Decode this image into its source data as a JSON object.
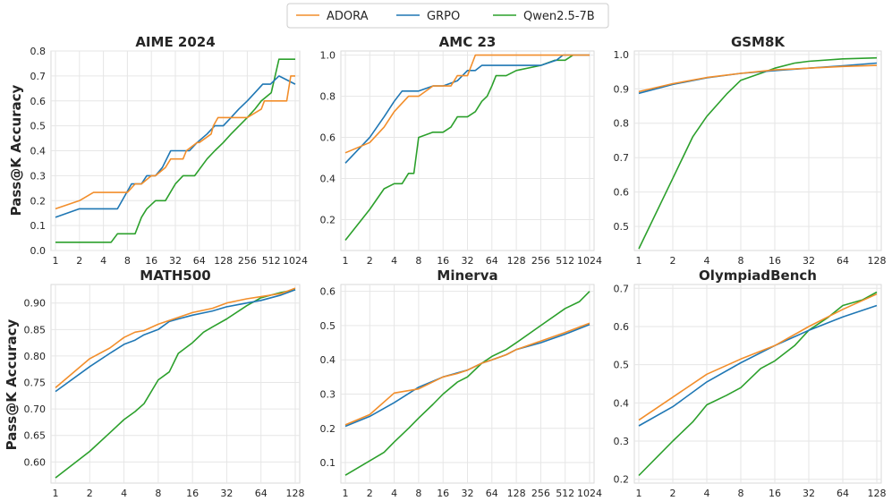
{
  "legend": {
    "entries": [
      {
        "name": "ADORA",
        "color": "#f28e2b"
      },
      {
        "name": "GRPO",
        "color": "#1f77b4"
      },
      {
        "name": "Qwen2.5-7B",
        "color": "#2ca02c"
      }
    ]
  },
  "ylabel": "Pass@K Accuracy",
  "chart_data": [
    {
      "type": "line",
      "title": "AIME 2024",
      "xscale": "log2",
      "xlim": [
        1,
        1024
      ],
      "ylim": [
        0,
        0.8
      ],
      "xticks": [
        1,
        2,
        4,
        8,
        16,
        32,
        64,
        128,
        256,
        512,
        1024
      ],
      "xtick_labels": [
        "1",
        "2",
        "4",
        "8",
        "16",
        "32",
        "64",
        "128",
        "256",
        "512",
        "1024"
      ],
      "yticks": [
        0.0,
        0.1,
        0.2,
        0.3,
        0.4,
        0.5,
        0.6,
        0.7,
        0.8
      ],
      "ytick_labels": [
        "0.0",
        "0.1",
        "0.2",
        "0.3",
        "0.4",
        "0.5",
        "0.6",
        "0.7",
        "0.8"
      ],
      "series": [
        {
          "name": "ADORA",
          "x": [
            1,
            2,
            3,
            8,
            10,
            12,
            16,
            18,
            24,
            28,
            40,
            44,
            60,
            64,
            90,
            96,
            110,
            128,
            160,
            256,
            384,
            420,
            540,
            800,
            900,
            1024
          ],
          "y": [
            0.167,
            0.2,
            0.233,
            0.233,
            0.267,
            0.267,
            0.3,
            0.3,
            0.333,
            0.367,
            0.367,
            0.4,
            0.433,
            0.433,
            0.467,
            0.5,
            0.533,
            0.533,
            0.533,
            0.533,
            0.567,
            0.6,
            0.6,
            0.6,
            0.7,
            0.7
          ]
        },
        {
          "name": "GRPO",
          "x": [
            1,
            2,
            6,
            9,
            12,
            14,
            18,
            22,
            28,
            34,
            48,
            60,
            80,
            100,
            128,
            160,
            200,
            256,
            320,
            400,
            500,
            640,
            1024
          ],
          "y": [
            0.133,
            0.167,
            0.167,
            0.267,
            0.267,
            0.3,
            0.3,
            0.333,
            0.4,
            0.4,
            0.4,
            0.433,
            0.467,
            0.5,
            0.5,
            0.533,
            0.567,
            0.6,
            0.633,
            0.667,
            0.667,
            0.7,
            0.667
          ]
        },
        {
          "name": "Qwen2.5-7B",
          "x": [
            1,
            5,
            6,
            10,
            12,
            14,
            18,
            24,
            32,
            40,
            56,
            80,
            100,
            128,
            160,
            256,
            320,
            384,
            512,
            640,
            1024
          ],
          "y": [
            0.033,
            0.033,
            0.067,
            0.067,
            0.133,
            0.167,
            0.2,
            0.2,
            0.267,
            0.3,
            0.3,
            0.367,
            0.4,
            0.433,
            0.467,
            0.533,
            0.567,
            0.6,
            0.633,
            0.767,
            0.767
          ]
        }
      ]
    },
    {
      "type": "line",
      "title": "AMC 23",
      "xscale": "log2",
      "xlim": [
        1,
        1024
      ],
      "ylim": [
        0.05,
        1.02
      ],
      "xticks": [
        1,
        2,
        4,
        8,
        16,
        32,
        64,
        128,
        256,
        512,
        1024
      ],
      "xtick_labels": [
        "1",
        "2",
        "4",
        "8",
        "16",
        "32",
        "64",
        "128",
        "256",
        "512",
        "1024"
      ],
      "yticks": [
        0.2,
        0.4,
        0.6,
        0.8,
        1.0
      ],
      "ytick_labels": [
        "0.2",
        "0.4",
        "0.6",
        "0.8",
        "1.0"
      ],
      "series": [
        {
          "name": "ADORA",
          "x": [
            1,
            2,
            3,
            4,
            6,
            8,
            12,
            16,
            20,
            24,
            32,
            40,
            64,
            128,
            256,
            512,
            1024
          ],
          "y": [
            0.525,
            0.575,
            0.65,
            0.725,
            0.8,
            0.8,
            0.85,
            0.85,
            0.85,
            0.9,
            0.9,
            1.0,
            1.0,
            1.0,
            1.0,
            1.0,
            1.0
          ]
        },
        {
          "name": "GRPO",
          "x": [
            1,
            2,
            3,
            4,
            5,
            8,
            12,
            16,
            24,
            32,
            40,
            48,
            64,
            128,
            256,
            400,
            480,
            1024
          ],
          "y": [
            0.475,
            0.6,
            0.7,
            0.775,
            0.825,
            0.825,
            0.85,
            0.85,
            0.875,
            0.925,
            0.925,
            0.95,
            0.95,
            0.95,
            0.95,
            0.975,
            1.0,
            1.0
          ]
        },
        {
          "name": "Qwen2.5-7B",
          "x": [
            1,
            2,
            3,
            4,
            5,
            6,
            7,
            8,
            12,
            16,
            20,
            24,
            32,
            40,
            48,
            56,
            64,
            72,
            96,
            128,
            256,
            384,
            512,
            640
          ],
          "y": [
            0.1,
            0.25,
            0.35,
            0.375,
            0.375,
            0.425,
            0.425,
            0.6,
            0.625,
            0.625,
            0.65,
            0.7,
            0.7,
            0.725,
            0.775,
            0.8,
            0.85,
            0.9,
            0.9,
            0.925,
            0.95,
            0.975,
            0.975,
            1.0
          ]
        }
      ]
    },
    {
      "type": "line",
      "title": "GSM8K",
      "xscale": "log2",
      "xlim": [
        1,
        128
      ],
      "ylim": [
        0.43,
        1.01
      ],
      "xticks": [
        1,
        2,
        4,
        8,
        16,
        32,
        64,
        128
      ],
      "xtick_labels": [
        "1",
        "2",
        "4",
        "8",
        "16",
        "32",
        "64",
        "128"
      ],
      "yticks": [
        0.5,
        0.6,
        0.7,
        0.8,
        0.9,
        1.0
      ],
      "ytick_labels": [
        "0.5",
        "0.6",
        "0.7",
        "0.8",
        "0.9",
        "1.0"
      ],
      "series": [
        {
          "name": "ADORA",
          "x": [
            1,
            2,
            4,
            8,
            16,
            32,
            64,
            128
          ],
          "y": [
            0.892,
            0.915,
            0.933,
            0.945,
            0.955,
            0.96,
            0.965,
            0.968
          ]
        },
        {
          "name": "GRPO",
          "x": [
            1,
            2,
            4,
            8,
            16,
            32,
            64,
            128
          ],
          "y": [
            0.887,
            0.913,
            0.932,
            0.945,
            0.953,
            0.96,
            0.967,
            0.975
          ]
        },
        {
          "name": "Qwen2.5-7B",
          "x": [
            1,
            2,
            3,
            4,
            6,
            8,
            12,
            16,
            24,
            32,
            64,
            128
          ],
          "y": [
            0.435,
            0.64,
            0.76,
            0.82,
            0.885,
            0.925,
            0.945,
            0.96,
            0.975,
            0.98,
            0.987,
            0.99
          ]
        }
      ]
    },
    {
      "type": "line",
      "title": "MATH500",
      "xscale": "log2",
      "xlim": [
        1,
        128
      ],
      "ylim": [
        0.56,
        0.935
      ],
      "xticks": [
        1,
        2,
        4,
        8,
        16,
        32,
        64,
        128
      ],
      "xtick_labels": [
        "1",
        "2",
        "4",
        "8",
        "16",
        "32",
        "64",
        "128"
      ],
      "yticks": [
        0.6,
        0.65,
        0.7,
        0.75,
        0.8,
        0.85,
        0.9
      ],
      "ytick_labels": [
        "0.60",
        "0.65",
        "0.70",
        "0.75",
        "0.80",
        "0.85",
        "0.90"
      ],
      "series": [
        {
          "name": "ADORA",
          "x": [
            1,
            2,
            3,
            4,
            5,
            6,
            8,
            12,
            16,
            24,
            32,
            48,
            64,
            96,
            128
          ],
          "y": [
            0.74,
            0.795,
            0.815,
            0.835,
            0.845,
            0.848,
            0.86,
            0.873,
            0.882,
            0.89,
            0.9,
            0.908,
            0.912,
            0.918,
            0.928
          ]
        },
        {
          "name": "GRPO",
          "x": [
            1,
            2,
            3,
            4,
            5,
            6,
            8,
            10,
            12,
            16,
            24,
            32,
            48,
            64,
            96,
            128
          ],
          "y": [
            0.733,
            0.78,
            0.805,
            0.822,
            0.83,
            0.84,
            0.85,
            0.865,
            0.87,
            0.877,
            0.885,
            0.893,
            0.9,
            0.905,
            0.915,
            0.925
          ]
        },
        {
          "name": "Qwen2.5-7B",
          "x": [
            1,
            2,
            3,
            4,
            5,
            6,
            8,
            10,
            12,
            16,
            20,
            24,
            32,
            48,
            64,
            96,
            128
          ],
          "y": [
            0.57,
            0.62,
            0.655,
            0.68,
            0.695,
            0.71,
            0.755,
            0.77,
            0.805,
            0.825,
            0.845,
            0.855,
            0.87,
            0.895,
            0.91,
            0.92,
            0.925
          ]
        }
      ]
    },
    {
      "type": "line",
      "title": "Minerva",
      "xscale": "log2",
      "xlim": [
        1,
        1024
      ],
      "ylim": [
        0.04,
        0.62
      ],
      "xticks": [
        1,
        2,
        4,
        8,
        16,
        32,
        64,
        128,
        256,
        512,
        1024
      ],
      "xtick_labels": [
        "1",
        "2",
        "4",
        "8",
        "16",
        "32",
        "64",
        "128",
        "256",
        "512",
        "1024"
      ],
      "yticks": [
        0.1,
        0.2,
        0.3,
        0.4,
        0.5,
        0.6
      ],
      "ytick_labels": [
        "0.1",
        "0.2",
        "0.3",
        "0.4",
        "0.5",
        "0.6"
      ],
      "series": [
        {
          "name": "ADORA",
          "x": [
            1,
            2,
            4,
            8,
            16,
            24,
            32,
            48,
            64,
            96,
            128,
            256,
            512,
            1024
          ],
          "y": [
            0.21,
            0.24,
            0.303,
            0.315,
            0.35,
            0.36,
            0.37,
            0.39,
            0.4,
            0.415,
            0.43,
            0.455,
            0.48,
            0.507
          ]
        },
        {
          "name": "GRPO",
          "x": [
            1,
            2,
            4,
            8,
            16,
            32,
            48,
            64,
            96,
            128,
            256,
            512,
            1024
          ],
          "y": [
            0.206,
            0.235,
            0.275,
            0.32,
            0.35,
            0.37,
            0.39,
            0.4,
            0.415,
            0.43,
            0.45,
            0.475,
            0.503
          ]
        },
        {
          "name": "Qwen2.5-7B",
          "x": [
            1,
            2,
            3,
            4,
            6,
            8,
            12,
            16,
            24,
            32,
            48,
            64,
            96,
            128,
            256,
            512,
            768,
            1024
          ],
          "y": [
            0.063,
            0.105,
            0.13,
            0.16,
            0.2,
            0.23,
            0.27,
            0.3,
            0.335,
            0.35,
            0.39,
            0.41,
            0.43,
            0.45,
            0.5,
            0.55,
            0.57,
            0.6
          ]
        }
      ]
    },
    {
      "type": "line",
      "title": "OlympiadBench",
      "xscale": "log2",
      "xlim": [
        1,
        128
      ],
      "ylim": [
        0.19,
        0.71
      ],
      "xticks": [
        1,
        2,
        4,
        8,
        16,
        32,
        64,
        128
      ],
      "xtick_labels": [
        "1",
        "2",
        "4",
        "8",
        "16",
        "32",
        "64",
        "128"
      ],
      "yticks": [
        0.2,
        0.3,
        0.4,
        0.5,
        0.6,
        0.7
      ],
      "ytick_labels": [
        "0.2",
        "0.3",
        "0.4",
        "0.5",
        "0.6",
        "0.7"
      ],
      "series": [
        {
          "name": "ADORA",
          "x": [
            1,
            2,
            4,
            8,
            16,
            32,
            64,
            128
          ],
          "y": [
            0.355,
            0.415,
            0.475,
            0.515,
            0.55,
            0.6,
            0.645,
            0.685
          ]
        },
        {
          "name": "GRPO",
          "x": [
            1,
            2,
            4,
            8,
            16,
            32,
            64,
            128
          ],
          "y": [
            0.34,
            0.39,
            0.455,
            0.505,
            0.55,
            0.59,
            0.625,
            0.655
          ]
        },
        {
          "name": "Qwen2.5-7B",
          "x": [
            1,
            2,
            3,
            4,
            6,
            8,
            12,
            16,
            24,
            32,
            48,
            64,
            96,
            128
          ],
          "y": [
            0.21,
            0.3,
            0.35,
            0.395,
            0.42,
            0.44,
            0.49,
            0.51,
            0.55,
            0.59,
            0.625,
            0.655,
            0.67,
            0.69
          ]
        }
      ]
    }
  ]
}
